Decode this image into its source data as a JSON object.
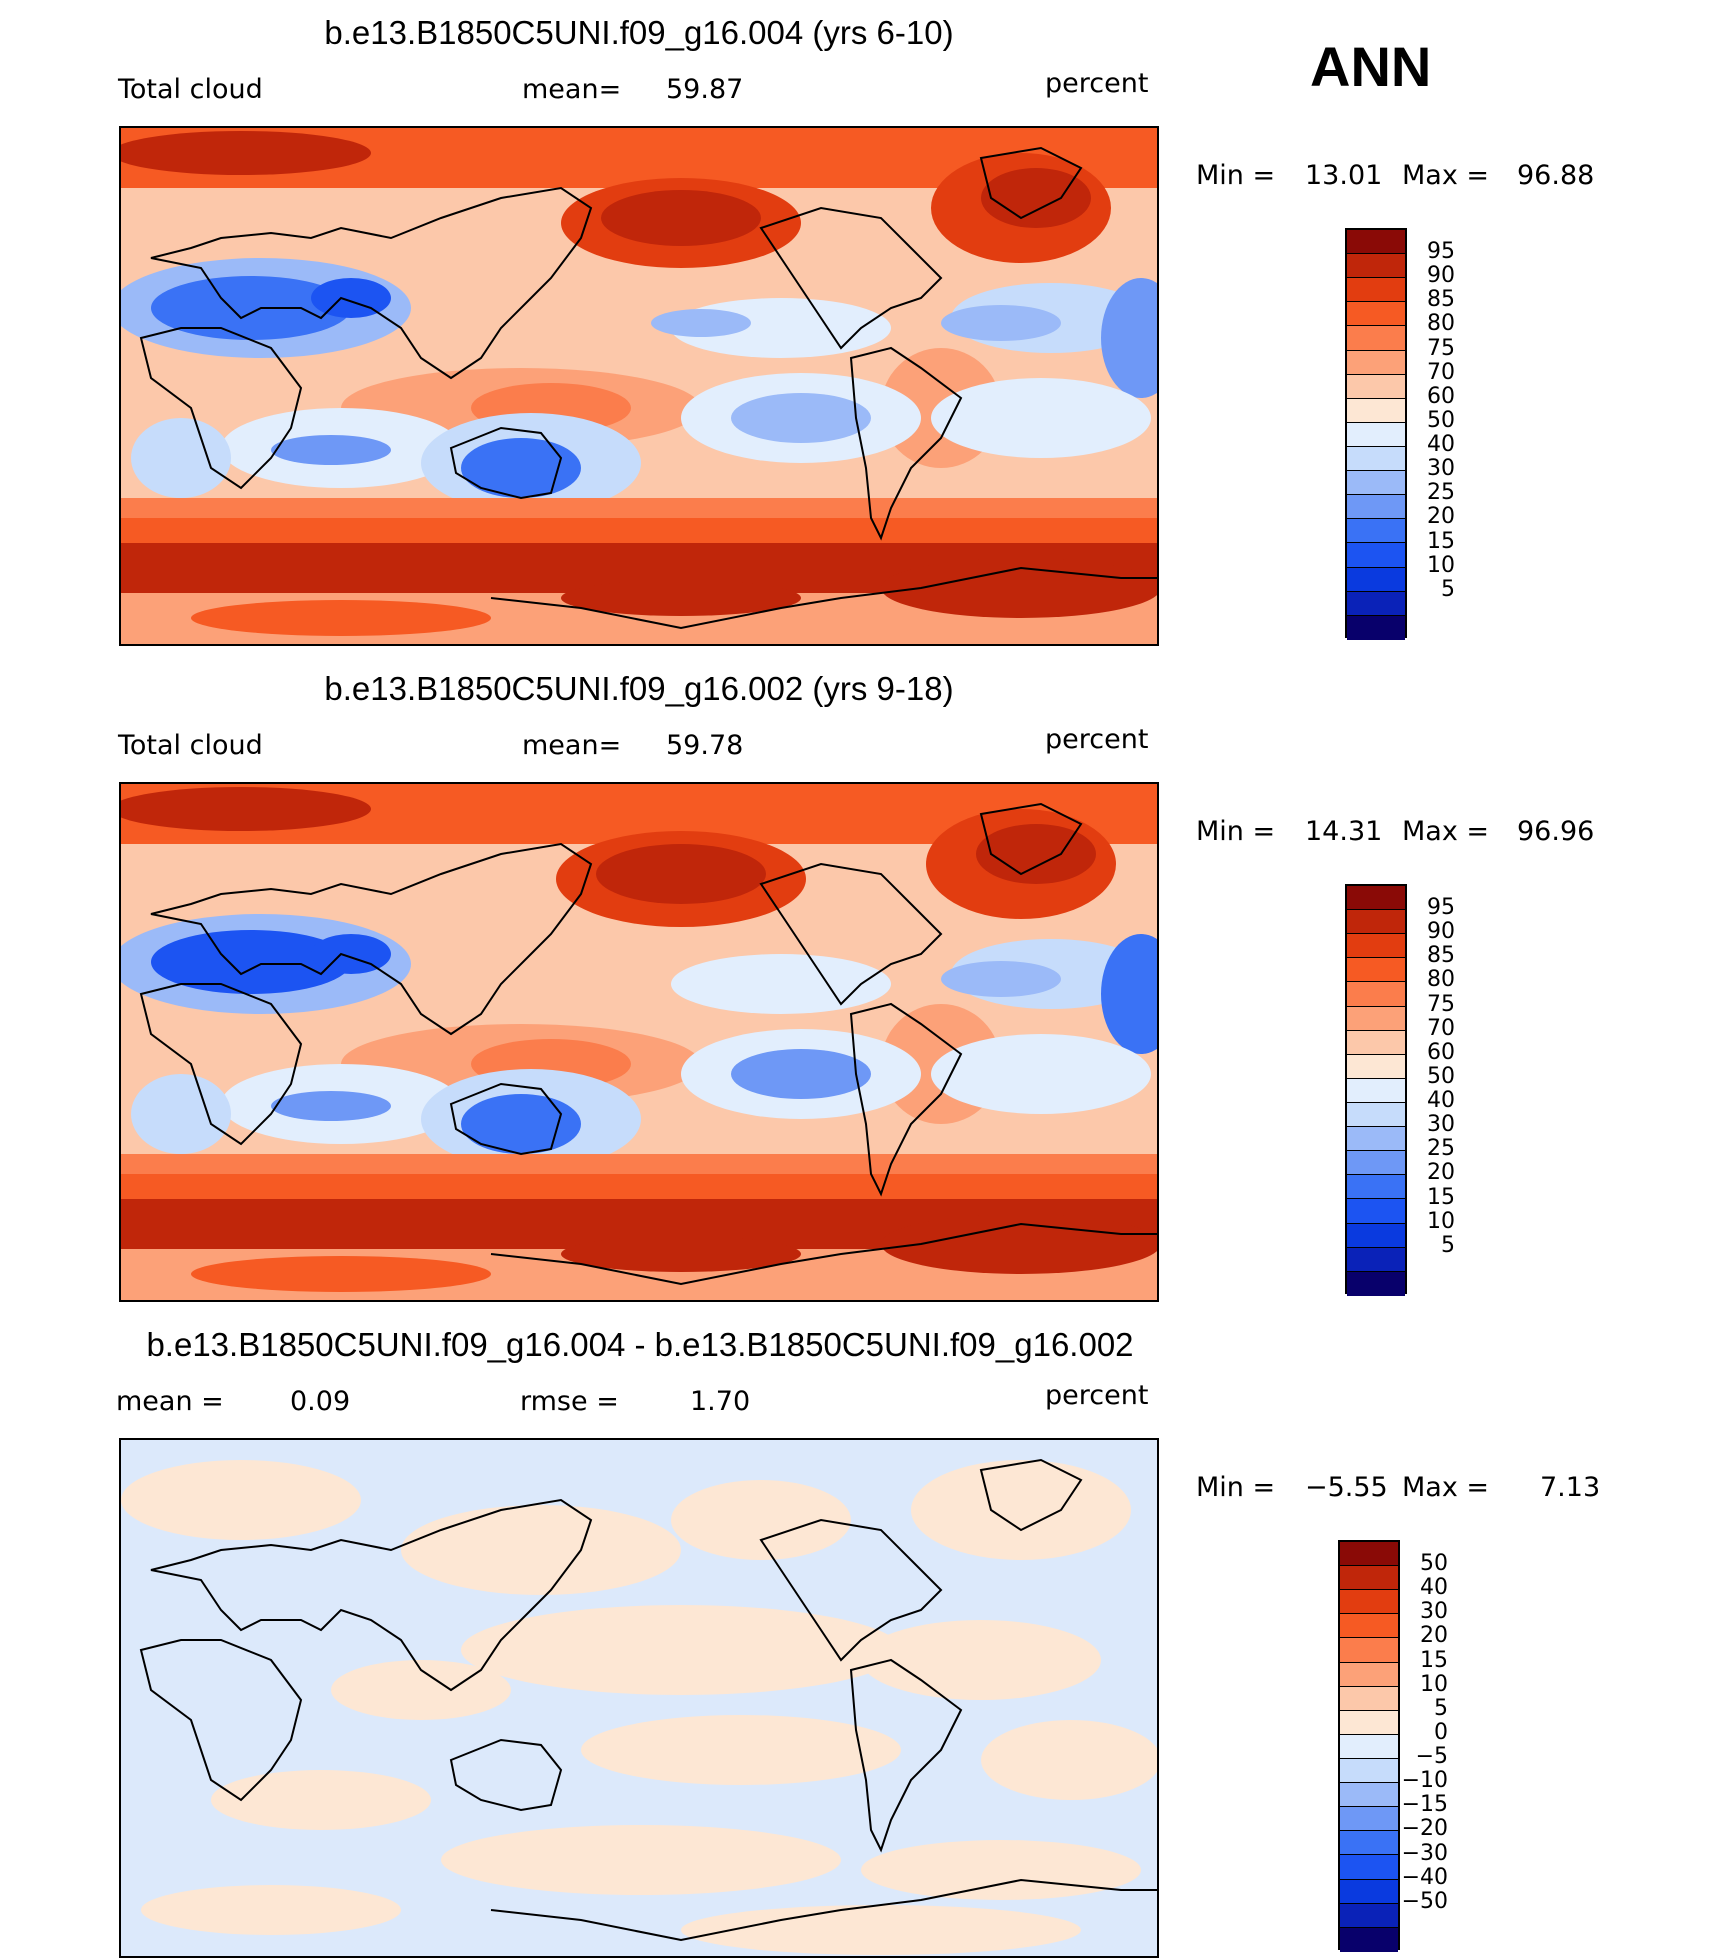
{
  "season": "ANN",
  "colors": {
    "abs_scale": [
      "#08006b",
      "#0a22b8",
      "#0a3adf",
      "#1c54f2",
      "#3a72f5",
      "#6e98f6",
      "#9bbaf8",
      "#c6dcfb",
      "#e2eefd",
      "#fde7d4",
      "#fcc8aa",
      "#fca178",
      "#fb7d4c",
      "#f65a23",
      "#e23d10",
      "#c0260a",
      "#8a0a06"
    ],
    "diff_scale": [
      "#08006b",
      "#0a22b8",
      "#0a3adf",
      "#1c54f2",
      "#3a72f5",
      "#6e98f6",
      "#9bbaf8",
      "#c6dcfb",
      "#e2eefd",
      "#fde7d4",
      "#fcc8aa",
      "#fca178",
      "#fb7d4c",
      "#f65a23",
      "#e23d10",
      "#c0260a",
      "#8a0a06"
    ]
  },
  "panels": [
    {
      "title": "b.e13.B1850C5UNI.f09_g16.004 (yrs 6-10)",
      "variable": "Total cloud",
      "mean_label": "mean=",
      "mean_value": "59.87",
      "units": "percent",
      "min_label": "Min =",
      "min_value": "13.01",
      "max_label": "Max =",
      "max_value": "96.88",
      "colorbar_labels": [
        "95",
        "90",
        "85",
        "80",
        "75",
        "70",
        "60",
        "50",
        "40",
        "30",
        "25",
        "20",
        "15",
        "10",
        "5"
      ]
    },
    {
      "title": "b.e13.B1850C5UNI.f09_g16.002 (yrs 9-18)",
      "variable": "Total cloud",
      "mean_label": "mean=",
      "mean_value": "59.78",
      "units": "percent",
      "min_label": "Min =",
      "min_value": "14.31",
      "max_label": "Max =",
      "max_value": "96.96",
      "colorbar_labels": [
        "95",
        "90",
        "85",
        "80",
        "75",
        "70",
        "60",
        "50",
        "40",
        "30",
        "25",
        "20",
        "15",
        "10",
        "5"
      ]
    },
    {
      "title": "b.e13.B1850C5UNI.f09_g16.004 - b.e13.B1850C5UNI.f09_g16.002",
      "mean_label": "mean =",
      "mean_value": "0.09",
      "rmse_label": "rmse =",
      "rmse_value": "1.70",
      "units": "percent",
      "min_label": "Min =",
      "min_value": "−5.55",
      "max_label": "Max =",
      "max_value": "7.13",
      "colorbar_labels": [
        "50",
        "40",
        "30",
        "20",
        "15",
        "10",
        "5",
        "0",
        "−5",
        "−10",
        "−15",
        "−20",
        "−30",
        "−40",
        "−50"
      ]
    }
  ],
  "chart_data": [
    {
      "type": "heatmap",
      "title": "b.e13.B1850C5UNI.f09_g16.004 (yrs 6-10)",
      "variable": "Total cloud",
      "units": "percent",
      "mean": 59.87,
      "min": 13.01,
      "max": 96.88,
      "contour_levels": [
        5,
        10,
        15,
        20,
        25,
        30,
        40,
        50,
        60,
        70,
        75,
        80,
        85,
        90,
        95
      ]
    },
    {
      "type": "heatmap",
      "title": "b.e13.B1850C5UNI.f09_g16.002 (yrs 9-18)",
      "variable": "Total cloud",
      "units": "percent",
      "mean": 59.78,
      "min": 14.31,
      "max": 96.96,
      "contour_levels": [
        5,
        10,
        15,
        20,
        25,
        30,
        40,
        50,
        60,
        70,
        75,
        80,
        85,
        90,
        95
      ]
    },
    {
      "type": "heatmap",
      "title": "b.e13.B1850C5UNI.f09_g16.004 - b.e13.B1850C5UNI.f09_g16.002",
      "units": "percent",
      "mean": 0.09,
      "rmse": 1.7,
      "min": -5.55,
      "max": 7.13,
      "contour_levels": [
        -50,
        -40,
        -30,
        -20,
        -15,
        -10,
        -5,
        0,
        5,
        10,
        15,
        20,
        30,
        40,
        50
      ]
    }
  ]
}
